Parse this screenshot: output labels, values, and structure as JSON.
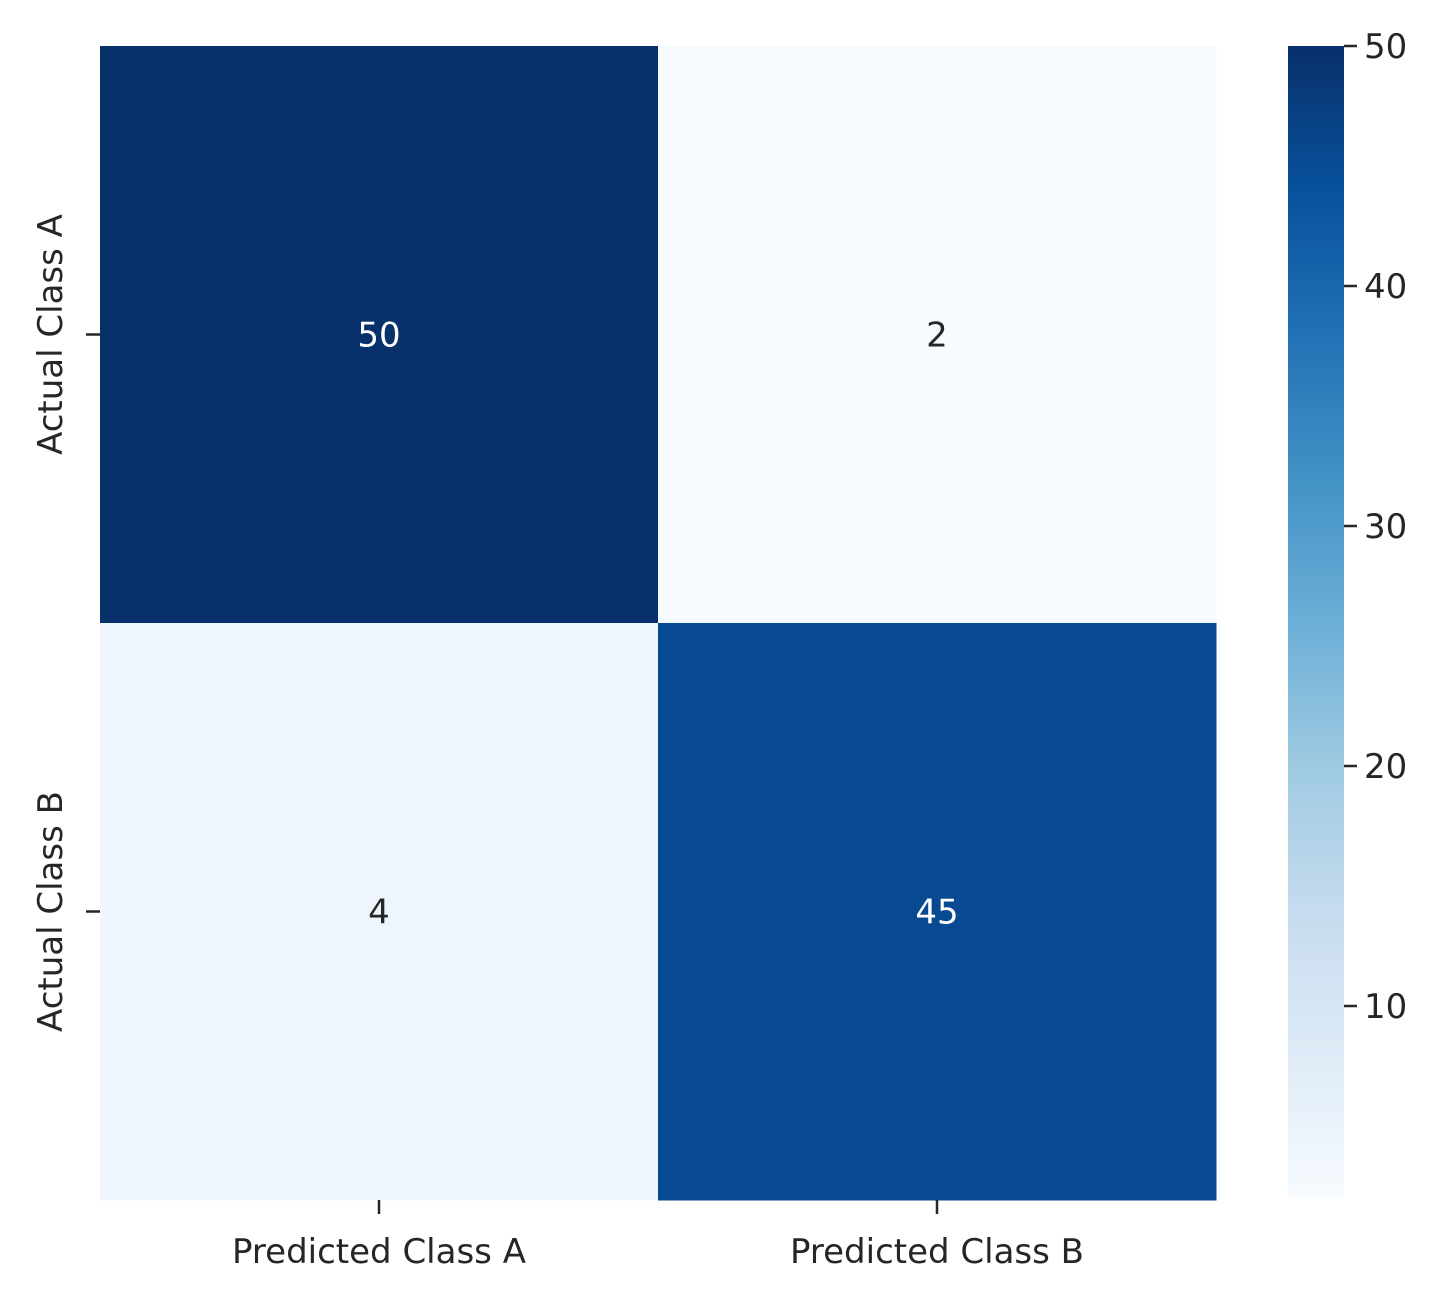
{
  "chart_data": {
    "type": "heatmap",
    "x_categories": [
      "Predicted Class A",
      "Predicted Class B"
    ],
    "y_categories": [
      "Actual Class A",
      "Actual Class B"
    ],
    "values": [
      [
        50,
        2
      ],
      [
        4,
        45
      ]
    ],
    "annotations": [
      [
        "50",
        "2"
      ],
      [
        "4",
        "45"
      ]
    ],
    "colormap": "Blues",
    "color_range": [
      2,
      50
    ],
    "colorbar": {
      "ticks": [
        10,
        20,
        30,
        40,
        50
      ],
      "tick_labels": [
        "10",
        "20",
        "30",
        "40",
        "50"
      ]
    },
    "cell_colors": [
      [
        "#08306b",
        "#f7fbff"
      ],
      [
        "#eff5fc",
        "#084a91"
      ]
    ],
    "annotation_colors": [
      [
        "#ffffff",
        "#262626"
      ],
      [
        "#262626",
        "#ffffff"
      ]
    ],
    "title": "",
    "xlabel": "",
    "ylabel": ""
  }
}
